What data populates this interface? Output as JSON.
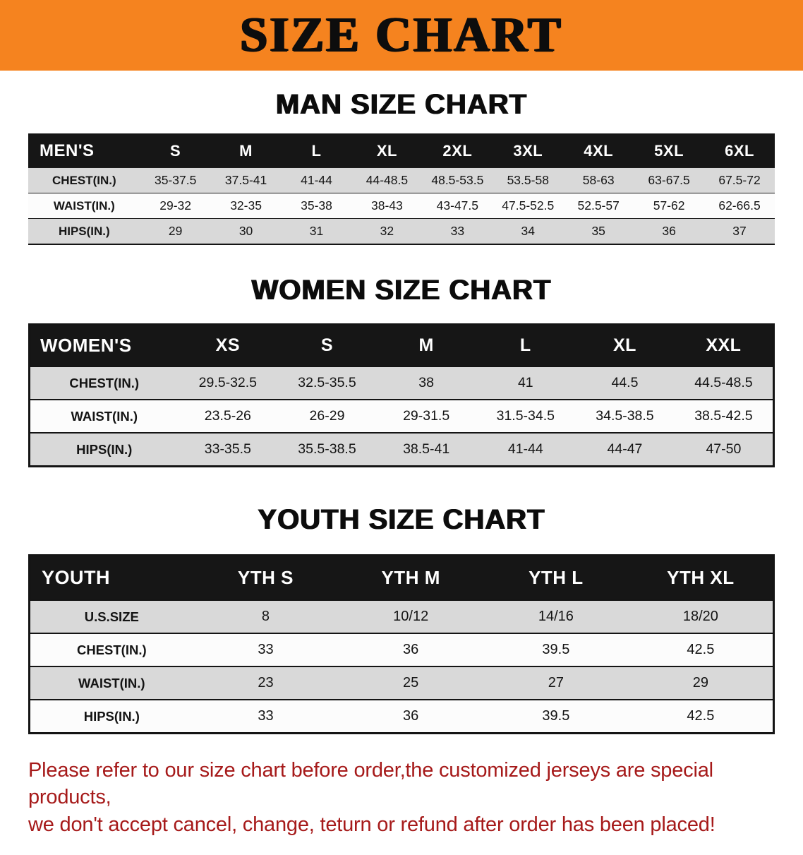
{
  "page": {
    "banner": {
      "title": "SIZE CHART",
      "bg_color": "#f5831f",
      "text_color": "#0d0d0d"
    },
    "disclaimer": {
      "line1": "Please refer to our size chart before order,the customized jerseys are special products,",
      "line2": "we don't accept cancel, change, teturn or refund after order has been placed!",
      "color": "#a61a1a"
    },
    "colors": {
      "table_header_bg": "#161616",
      "table_header_text": "#ffffff",
      "row_stripe_gray": "#d9d9d9",
      "row_stripe_white": "#fcfcfc"
    }
  },
  "sections": [
    {
      "id": "men",
      "heading": "MAN SIZE CHART",
      "table": {
        "header": [
          "MEN'S",
          "S",
          "M",
          "L",
          "XL",
          "2XL",
          "3XL",
          "4XL",
          "5XL",
          "6XL"
        ],
        "rows": [
          [
            "CHEST(IN.)",
            "35-37.5",
            "37.5-41",
            "41-44",
            "44-48.5",
            "48.5-53.5",
            "53.5-58",
            "58-63",
            "63-67.5",
            "67.5-72"
          ],
          [
            "WAIST(IN.)",
            "29-32",
            "32-35",
            "35-38",
            "38-43",
            "43-47.5",
            "47.5-52.5",
            "52.5-57",
            "57-62",
            "62-66.5"
          ],
          [
            "HIPS(IN.)",
            "29",
            "30",
            "31",
            "32",
            "33",
            "34",
            "35",
            "36",
            "37"
          ]
        ]
      }
    },
    {
      "id": "women",
      "heading": "WOMEN SIZE CHART",
      "table": {
        "header": [
          "WOMEN'S",
          "XS",
          "S",
          "M",
          "L",
          "XL",
          "XXL"
        ],
        "rows": [
          [
            "CHEST(IN.)",
            "29.5-32.5",
            "32.5-35.5",
            "38",
            "41",
            "44.5",
            "44.5-48.5"
          ],
          [
            "WAIST(IN.)",
            "23.5-26",
            "26-29",
            "29-31.5",
            "31.5-34.5",
            "34.5-38.5",
            "38.5-42.5"
          ],
          [
            "HIPS(IN.)",
            "33-35.5",
            "35.5-38.5",
            "38.5-41",
            "41-44",
            "44-47",
            "47-50"
          ]
        ]
      }
    },
    {
      "id": "youth",
      "heading": "YOUTH SIZE CHART",
      "table": {
        "header": [
          "YOUTH",
          "YTH S",
          "YTH M",
          "YTH L",
          "YTH XL"
        ],
        "rows": [
          [
            "U.S.SIZE",
            "8",
            "10/12",
            "14/16",
            "18/20"
          ],
          [
            "CHEST(IN.)",
            "33",
            "36",
            "39.5",
            "42.5"
          ],
          [
            "WAIST(IN.)",
            "23",
            "25",
            "27",
            "29"
          ],
          [
            "HIPS(IN.)",
            "33",
            "36",
            "39.5",
            "42.5"
          ]
        ]
      }
    }
  ]
}
